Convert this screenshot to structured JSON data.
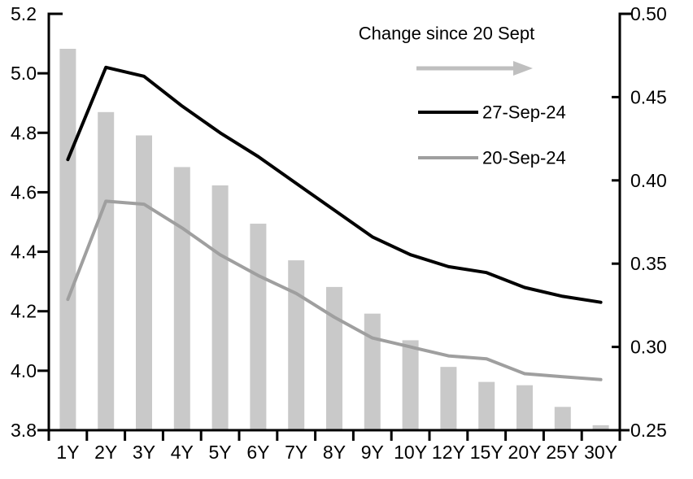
{
  "chart_data": {
    "type": "bar",
    "subtype": "combo-bar-line-dual-axis",
    "categories": [
      "1Y",
      "2Y",
      "3Y",
      "4Y",
      "5Y",
      "6Y",
      "7Y",
      "8Y",
      "9Y",
      "10Y",
      "12Y",
      "15Y",
      "20Y",
      "25Y",
      "30Y"
    ],
    "bar_series": {
      "name": "Change since 20 Sept",
      "axis": "right",
      "values": [
        0.479,
        0.441,
        0.427,
        0.408,
        0.397,
        0.374,
        0.352,
        0.336,
        0.32,
        0.304,
        0.288,
        0.279,
        0.277,
        0.264,
        0.253
      ]
    },
    "series": [
      {
        "name": "27-Sep-24",
        "axis": "left",
        "values": [
          4.71,
          5.02,
          4.99,
          4.89,
          4.8,
          4.72,
          4.63,
          4.54,
          4.45,
          4.39,
          4.35,
          4.33,
          4.28,
          4.25,
          4.23
        ]
      },
      {
        "name": "20-Sep-24",
        "axis": "left",
        "values": [
          4.24,
          4.57,
          4.56,
          4.48,
          4.39,
          4.32,
          4.26,
          4.18,
          4.11,
          4.08,
          4.05,
          4.04,
          3.99,
          3.98,
          3.97
        ]
      }
    ],
    "left_axis": {
      "min": 3.8,
      "max": 5.2,
      "tick_labels": [
        "5.2",
        "5.0",
        "4.8",
        "4.6",
        "4.4",
        "4.2",
        "4.0",
        "3.8"
      ]
    },
    "right_axis": {
      "min": 0.25,
      "max": 0.5,
      "tick_labels": [
        "0.50",
        "0.45",
        "0.40",
        "0.35",
        "0.30",
        "0.25"
      ]
    },
    "legend": {
      "title": "Change since 20 Sept",
      "arrow_icon": "right-arrow-icon",
      "entries": [
        {
          "label": "27-Sep-24",
          "color": "#000000"
        },
        {
          "label": "20-Sep-24",
          "color": "#9f9f9f"
        }
      ],
      "position": "top-right-inside"
    },
    "grid": false,
    "colors": {
      "bar": "#c9c9c9",
      "series_black": "#000000",
      "series_gray": "#9f9f9f",
      "arrow": "#bfbfbf",
      "axis": "#000000"
    }
  }
}
